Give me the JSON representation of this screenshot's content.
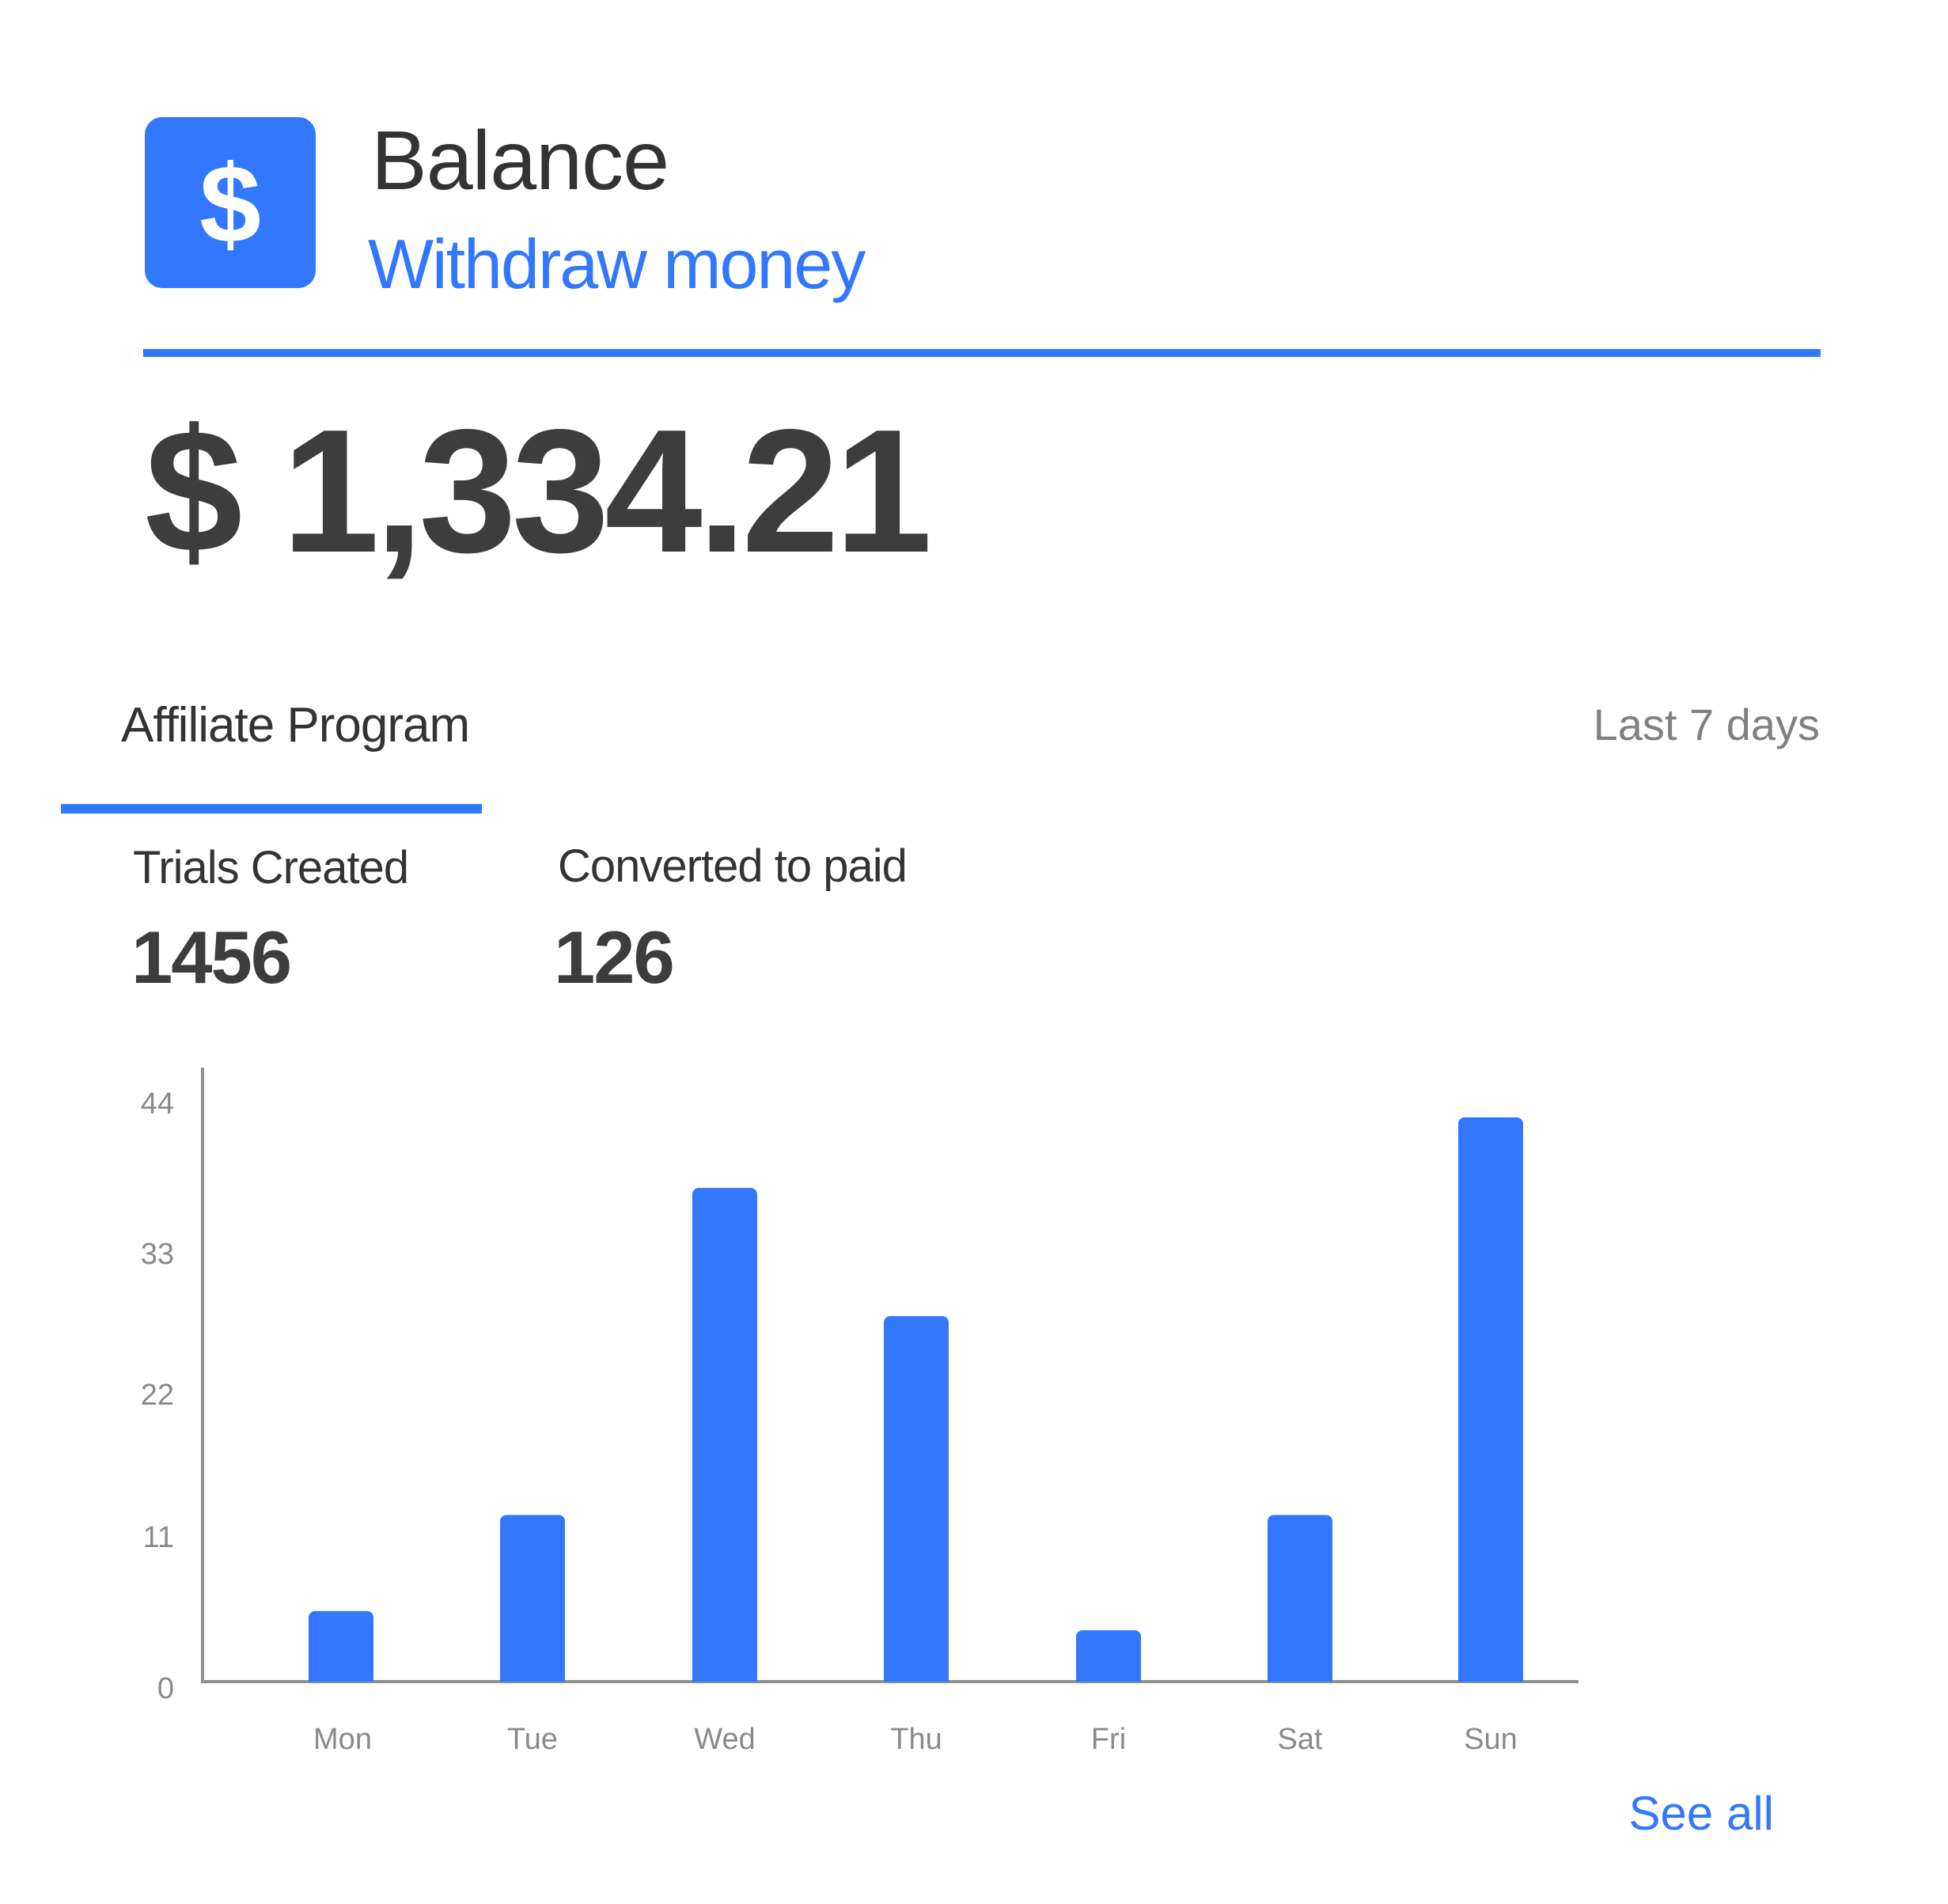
{
  "header": {
    "icon": "dollar-icon",
    "icon_glyph": "$",
    "title": "Balance",
    "withdraw_label": "Withdraw money",
    "accent_color": "#3178ff"
  },
  "balance": {
    "amount": "$ 1,334.21"
  },
  "affiliate": {
    "tab_label": "Affiliate Program",
    "period_label": "Last 7 days",
    "stats": {
      "trials_label": "Trials Created",
      "trials_value": "1456",
      "converted_label": "Converted to paid",
      "converted_value": "126"
    }
  },
  "chart_data": {
    "type": "bar",
    "categories": [
      "Mon",
      "Tue",
      "Wed",
      "Thu",
      "Fri",
      "Sat",
      "Sun"
    ],
    "values": [
      5.5,
      13,
      38.5,
      28.5,
      4,
      13,
      44
    ],
    "yticks": [
      0,
      11,
      22,
      33,
      44
    ],
    "ylim": [
      0,
      47
    ],
    "bar_color": "#3178ff",
    "grid": false
  },
  "footer": {
    "see_all_label": "See all"
  }
}
